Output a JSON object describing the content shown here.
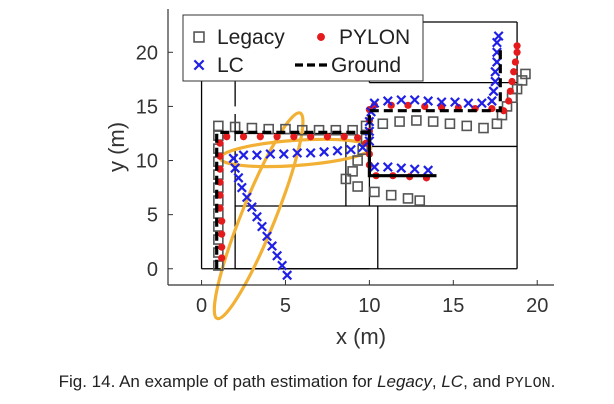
{
  "caption": {
    "prefix": "Fig. 14. An example of path estimation for ",
    "legacy": "Legacy",
    "sep1": ", ",
    "lc": "LC",
    "sep2": ", and ",
    "pylon": "PYLON",
    "suffix": "."
  },
  "colors": {
    "legacy": "#555555",
    "pylon": "#e41a1c",
    "lc": "#1f1fe6",
    "ground": "#000000",
    "highlight": "#f2b134",
    "building": "#000000"
  },
  "chart_data": {
    "type": "scatter",
    "xlabel": "x (m)",
    "ylabel": "y (m)",
    "xlim": [
      -2,
      21
    ],
    "ylim": [
      -1.5,
      24
    ],
    "xticks": [
      0,
      5,
      10,
      15,
      20
    ],
    "yticks": [
      0,
      5,
      10,
      15,
      20
    ],
    "grid": false,
    "legend_position": "top",
    "series": [
      {
        "name": "Legacy",
        "marker": "square",
        "points": [
          [
            1.0,
            0.3
          ],
          [
            1.0,
            1.5
          ],
          [
            1.0,
            2.7
          ],
          [
            1.0,
            3.9
          ],
          [
            1.0,
            5.1
          ],
          [
            1.0,
            6.3
          ],
          [
            1.0,
            7.5
          ],
          [
            1.0,
            8.7
          ],
          [
            1.0,
            9.9
          ],
          [
            1.0,
            11.1
          ],
          [
            1.0,
            12.3
          ],
          [
            1.0,
            13.2
          ],
          [
            2.0,
            13.1
          ],
          [
            3.0,
            13.0
          ],
          [
            4.0,
            12.9
          ],
          [
            5.0,
            12.9
          ],
          [
            6.0,
            12.8
          ],
          [
            7.0,
            12.8
          ],
          [
            8.0,
            12.8
          ],
          [
            9.0,
            12.8
          ],
          [
            9.8,
            12.0
          ],
          [
            9.6,
            11.0
          ],
          [
            9.3,
            10.0
          ],
          [
            9.0,
            9.0
          ],
          [
            8.6,
            8.3
          ],
          [
            9.3,
            7.6
          ],
          [
            10.3,
            7.1
          ],
          [
            11.3,
            6.8
          ],
          [
            12.3,
            6.5
          ],
          [
            13.0,
            6.3
          ],
          [
            9.8,
            13.2
          ],
          [
            10.8,
            13.4
          ],
          [
            11.8,
            13.6
          ],
          [
            12.8,
            13.7
          ],
          [
            13.8,
            13.6
          ],
          [
            14.8,
            13.4
          ],
          [
            15.8,
            13.2
          ],
          [
            16.8,
            13.0
          ],
          [
            17.6,
            13.4
          ],
          [
            17.9,
            14.2
          ],
          [
            18.2,
            15.0
          ],
          [
            18.5,
            15.8
          ],
          [
            18.8,
            16.6
          ],
          [
            19.1,
            17.4
          ],
          [
            19.3,
            18.0
          ]
        ]
      },
      {
        "name": "PYLON",
        "marker": "dot",
        "points": [
          [
            1.2,
            1.0
          ],
          [
            1.2,
            2.0
          ],
          [
            1.2,
            3.2
          ],
          [
            1.2,
            4.4
          ],
          [
            1.1,
            5.6
          ],
          [
            1.1,
            6.8
          ],
          [
            1.1,
            8.0
          ],
          [
            1.1,
            9.2
          ],
          [
            1.1,
            10.4
          ],
          [
            1.1,
            11.6
          ],
          [
            1.5,
            12.2
          ],
          [
            2.5,
            12.2
          ],
          [
            3.5,
            12.2
          ],
          [
            4.5,
            12.2
          ],
          [
            5.5,
            12.2
          ],
          [
            6.5,
            12.2
          ],
          [
            7.5,
            12.2
          ],
          [
            8.5,
            12.2
          ],
          [
            9.3,
            12.1
          ],
          [
            9.8,
            11.6
          ],
          [
            10.0,
            10.6
          ],
          [
            10.0,
            9.6
          ],
          [
            10.4,
            8.6
          ],
          [
            11.4,
            8.6
          ],
          [
            12.4,
            8.5
          ],
          [
            13.4,
            8.4
          ],
          [
            10.0,
            12.7
          ],
          [
            10.0,
            13.7
          ],
          [
            10.0,
            14.7
          ],
          [
            10.3,
            15.1
          ],
          [
            11.3,
            15.1
          ],
          [
            12.3,
            15.1
          ],
          [
            13.3,
            15.0
          ],
          [
            14.3,
            14.9
          ],
          [
            15.3,
            14.9
          ],
          [
            16.3,
            14.8
          ],
          [
            17.3,
            14.8
          ],
          [
            18.0,
            14.6
          ],
          [
            18.3,
            15.5
          ],
          [
            18.4,
            16.4
          ],
          [
            18.5,
            17.3
          ],
          [
            18.6,
            18.2
          ],
          [
            18.7,
            19.1
          ],
          [
            18.8,
            20.0
          ],
          [
            18.8,
            20.6
          ]
        ]
      },
      {
        "name": "LC",
        "marker": "x",
        "points": [
          [
            5.1,
            -0.6
          ],
          [
            4.8,
            0.3
          ],
          [
            4.5,
            1.2
          ],
          [
            4.2,
            2.1
          ],
          [
            3.9,
            3.0
          ],
          [
            3.6,
            3.9
          ],
          [
            3.3,
            4.8
          ],
          [
            3.0,
            5.7
          ],
          [
            2.7,
            6.6
          ],
          [
            2.4,
            7.5
          ],
          [
            2.2,
            8.4
          ],
          [
            2.0,
            9.3
          ],
          [
            1.9,
            10.2
          ],
          [
            2.5,
            10.5
          ],
          [
            3.3,
            10.5
          ],
          [
            4.1,
            10.6
          ],
          [
            4.9,
            10.6
          ],
          [
            5.7,
            10.7
          ],
          [
            6.5,
            10.7
          ],
          [
            7.3,
            10.8
          ],
          [
            8.1,
            10.9
          ],
          [
            8.9,
            11.0
          ],
          [
            9.6,
            11.2
          ],
          [
            10.0,
            11.8
          ],
          [
            10.0,
            12.7
          ],
          [
            10.0,
            13.6
          ],
          [
            10.1,
            14.5
          ],
          [
            10.3,
            15.3
          ],
          [
            11.1,
            15.5
          ],
          [
            11.9,
            15.6
          ],
          [
            12.7,
            15.6
          ],
          [
            13.5,
            15.5
          ],
          [
            14.3,
            15.4
          ],
          [
            15.1,
            15.4
          ],
          [
            15.9,
            15.3
          ],
          [
            16.7,
            15.3
          ],
          [
            17.3,
            15.5
          ],
          [
            17.4,
            16.4
          ],
          [
            17.5,
            17.3
          ],
          [
            17.5,
            18.2
          ],
          [
            17.6,
            19.1
          ],
          [
            17.6,
            20.0
          ],
          [
            17.6,
            20.9
          ],
          [
            17.7,
            21.5
          ],
          [
            10.3,
            9.4
          ],
          [
            11.1,
            9.4
          ],
          [
            11.9,
            9.3
          ],
          [
            12.7,
            9.2
          ],
          [
            13.5,
            9.1
          ]
        ]
      },
      {
        "name": "Ground",
        "marker": "dashed-line",
        "points": [
          [
            0.9,
            0.0
          ],
          [
            0.9,
            12.6
          ],
          [
            10.0,
            12.6
          ],
          [
            10.0,
            8.6
          ],
          [
            14.0,
            8.6
          ],
          [
            14.0,
            8.6
          ],
          [
            10.0,
            8.6
          ],
          [
            10.0,
            14.6
          ],
          [
            17.8,
            14.6
          ],
          [
            17.8,
            20.6
          ]
        ]
      }
    ],
    "highlight_ellipses": [
      {
        "cx": 3.4,
        "cy": 4.9,
        "rx": 6.6,
        "ry": 1.0,
        "angle_deg": 68
      },
      {
        "cx": 5.6,
        "cy": 10.7,
        "rx": 4.5,
        "ry": 0.75,
        "angle_deg": 4
      }
    ],
    "floor_plan": [
      [
        [
          0,
          0
        ],
        [
          18.8,
          0
        ]
      ],
      [
        [
          0,
          0
        ],
        [
          0,
          22.8
        ]
      ],
      [
        [
          0,
          22.8
        ],
        [
          18.8,
          22.8
        ]
      ],
      [
        [
          18.8,
          0
        ],
        [
          18.8,
          22.8
        ]
      ],
      [
        [
          2.0,
          0
        ],
        [
          2.0,
          11.0
        ]
      ],
      [
        [
          2.0,
          11.8
        ],
        [
          2.0,
          14.3
        ]
      ],
      [
        [
          2.0,
          15.0
        ],
        [
          2.0,
          18.2
        ]
      ],
      [
        [
          2.0,
          0
        ],
        [
          10.0,
          0
        ]
      ],
      [
        [
          2.0,
          5.8
        ],
        [
          18.8,
          5.8
        ]
      ],
      [
        [
          10.5,
          0
        ],
        [
          10.5,
          5.8
        ]
      ],
      [
        [
          8.6,
          5.8
        ],
        [
          8.6,
          12.5
        ]
      ],
      [
        [
          8.6,
          12.5
        ],
        [
          2.0,
          12.5
        ]
      ],
      [
        [
          10.0,
          11.3
        ],
        [
          18.8,
          11.3
        ]
      ],
      [
        [
          10.0,
          5.8
        ],
        [
          10.0,
          15.0
        ]
      ],
      [
        [
          10.0,
          17.2
        ],
        [
          18.8,
          17.2
        ]
      ],
      [
        [
          10.0,
          17.2
        ],
        [
          10.0,
          22.8
        ]
      ],
      [
        [
          0,
          18.2
        ],
        [
          10.0,
          18.2
        ]
      ],
      [
        [
          4.0,
          18.2
        ],
        [
          4.0,
          22.8
        ]
      ]
    ]
  }
}
